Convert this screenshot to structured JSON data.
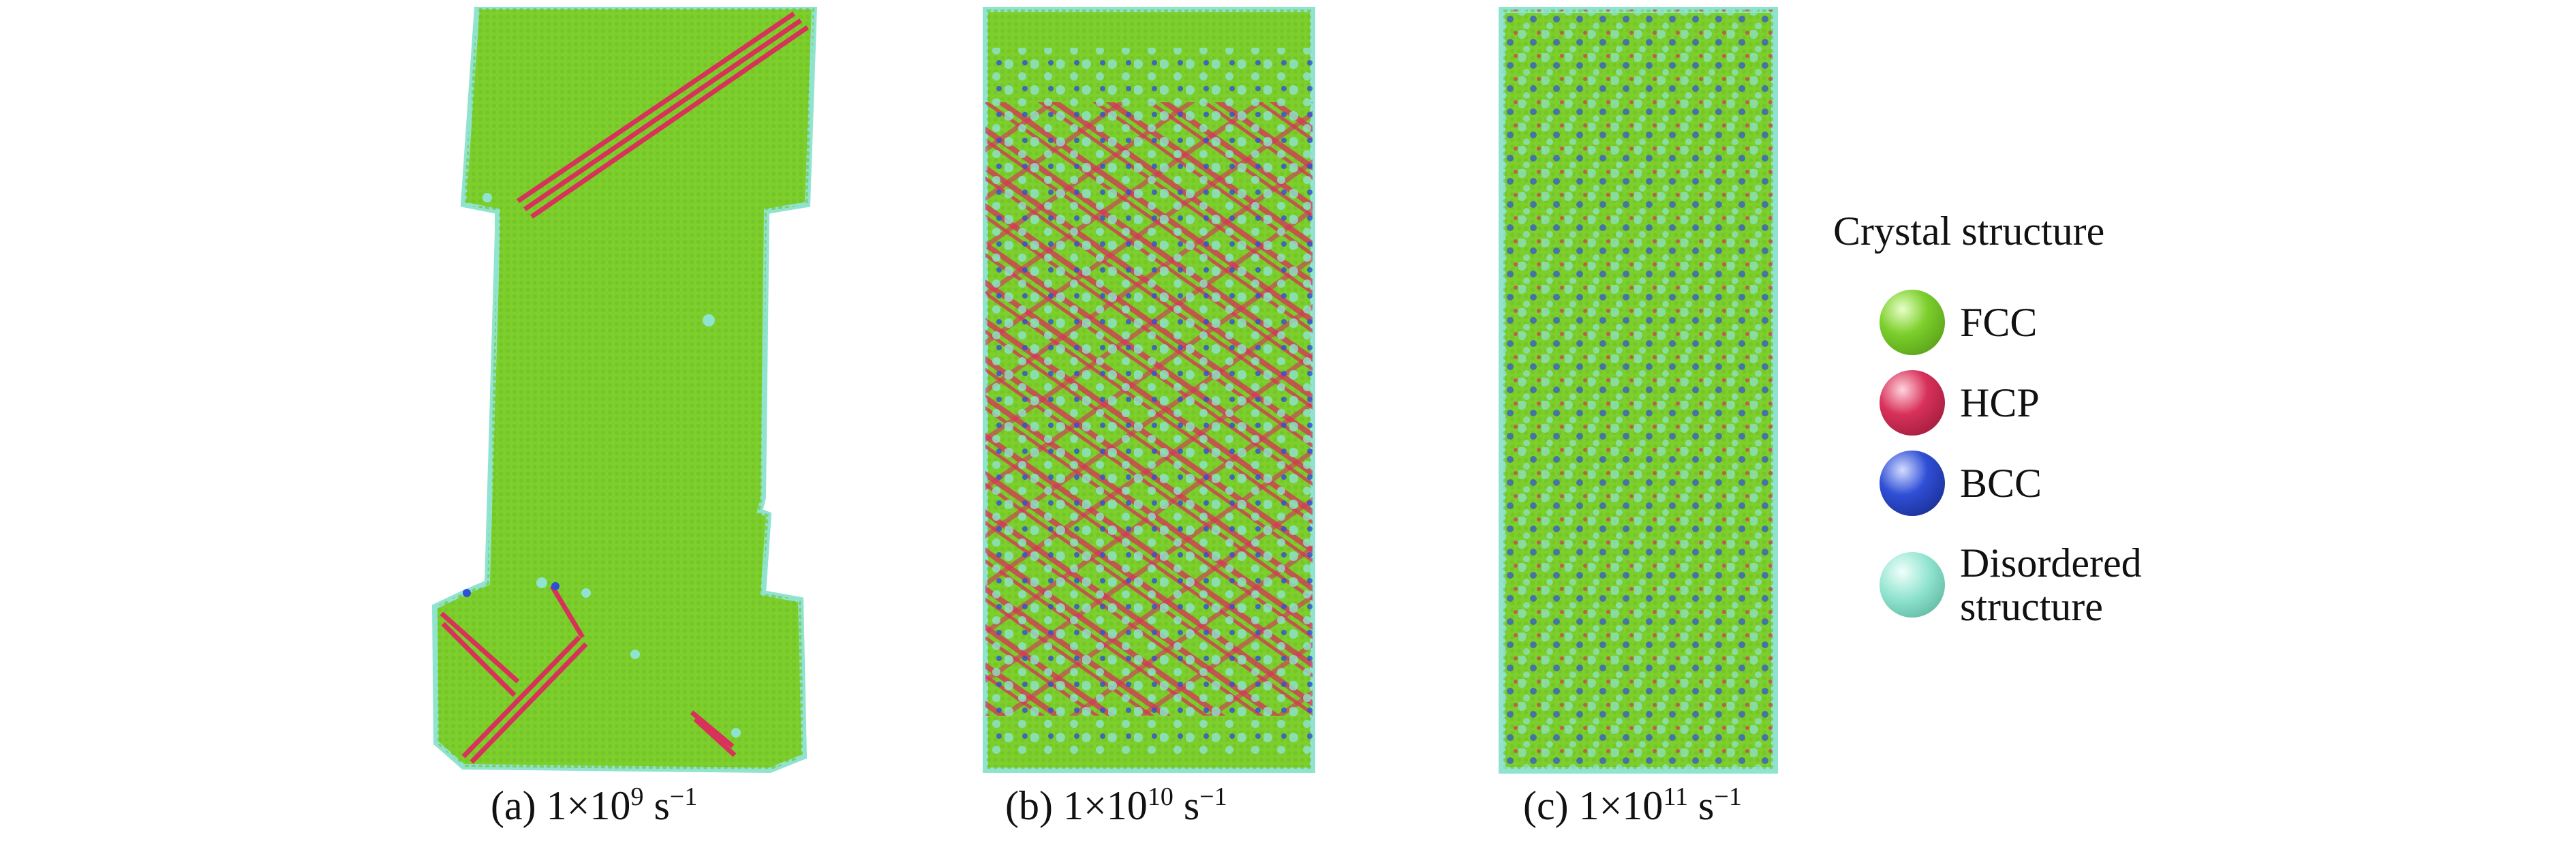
{
  "figure": {
    "panels": [
      {
        "id": "a",
        "caption_prefix": "(a) 1×10",
        "caption_exp": "9",
        "caption_unit": " s",
        "caption_unit_exp": "−1"
      },
      {
        "id": "b",
        "caption_prefix": "(b) 1×10",
        "caption_exp": "10",
        "caption_unit": " s",
        "caption_unit_exp": "−1"
      },
      {
        "id": "c",
        "caption_prefix": "(c) 1×10",
        "caption_exp": "11",
        "caption_unit": " s",
        "caption_unit_exp": "−1"
      }
    ],
    "legend": {
      "title": "Crystal structure",
      "items": [
        {
          "label": "FCC",
          "color": "#7ccf2c"
        },
        {
          "label": "HCP",
          "color": "#d8315a"
        },
        {
          "label": "BCC",
          "color": "#2f4fd6"
        },
        {
          "label": "Disordered\nstructure",
          "color": "#8fe3cf"
        }
      ]
    },
    "colors": {
      "fcc": "#7ccf2c",
      "hcp": "#d8315a",
      "bcc": "#2f4fd6",
      "disordered": "#8fe3cf",
      "background": "#ffffff"
    }
  }
}
